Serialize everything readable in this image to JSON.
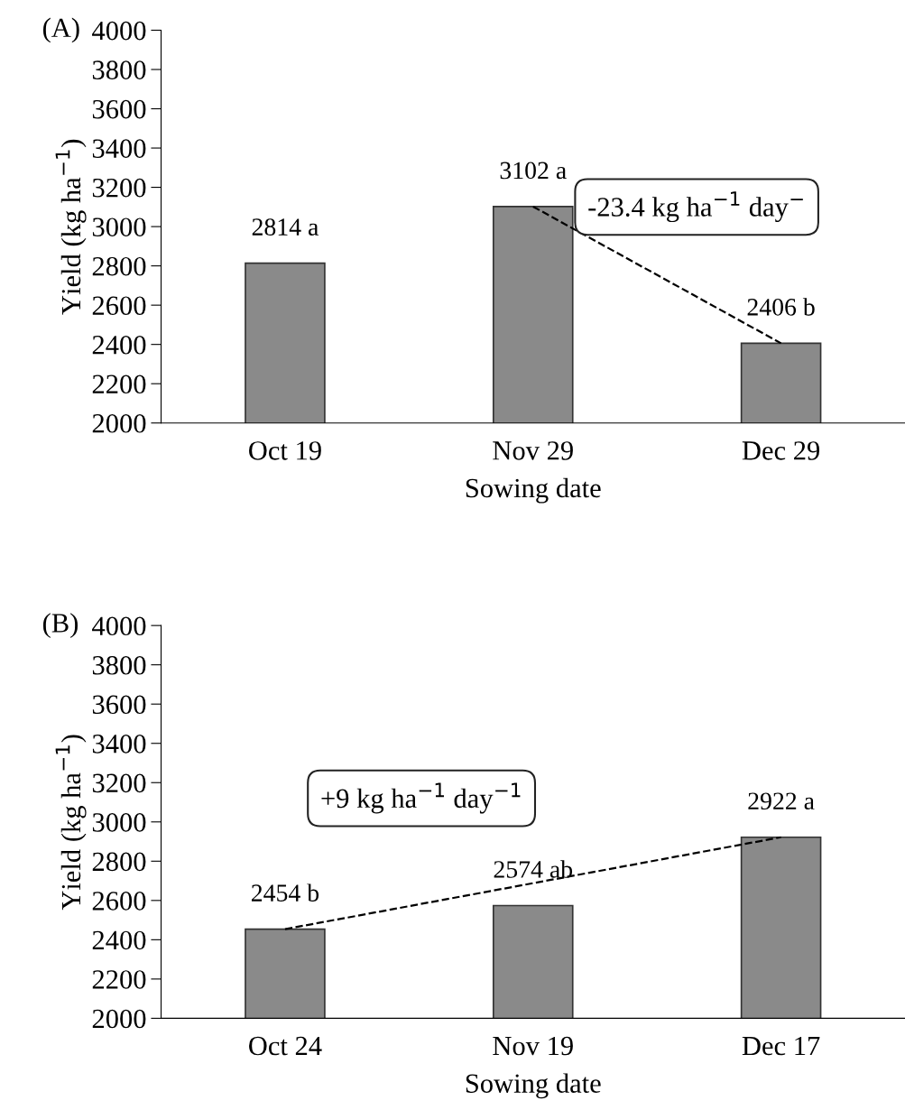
{
  "chart_data": [
    {
      "type": "bar",
      "categories": [
        "Oct 19",
        "Nov 29",
        "Dec 29"
      ],
      "xlabel": "Sowing date",
      "ylabel": "Yield (kg ha$^{−1}$)",
      "ylim": [
        2000,
        4000
      ],
      "yticks": [
        2000,
        2200,
        2400,
        2600,
        2800,
        3000,
        3200,
        3400,
        3600,
        3800,
        4000
      ],
      "grid": false,
      "legend": false,
      "series": [
        {
          "color": "#8a8a8a",
          "values": [
            2814,
            3102,
            2406
          ],
          "value_labels": [
            "2814 a",
            "3102 a",
            "2406 b"
          ]
        },
        {
          "type": "line",
          "color": "#000000",
          "line_style": "dashed",
          "marker": "none",
          "values": [
            null,
            3102,
            2406
          ]
        }
      ],
      "annotations": [
        "(A)",
        "-23.4 kg ha$^{−1}$ day$^{−}$"
      ]
    },
    {
      "type": "bar",
      "categories": [
        "Oct 24",
        "Nov 19",
        "Dec 17"
      ],
      "xlabel": "Sowing date",
      "ylabel": "Yield (kg ha$^{−1}$)",
      "ylim": [
        2000,
        4000
      ],
      "yticks": [
        2000,
        2200,
        2400,
        2600,
        2800,
        3000,
        3200,
        3400,
        3600,
        3800,
        4000
      ],
      "grid": false,
      "legend": false,
      "series": [
        {
          "color": "#8a8a8a",
          "values": [
            2454,
            2574,
            2922
          ],
          "value_labels": [
            "2454 b",
            "2574 ab",
            "2922 a"
          ]
        },
        {
          "type": "line",
          "color": "#000000",
          "line_style": "dashed",
          "marker": "none",
          "values": [
            2454,
            2688,
            2922
          ]
        }
      ],
      "annotations": [
        "(B)",
        "+9 kg ha$^{−1}$ day$^{−1}$"
      ]
    }
  ]
}
